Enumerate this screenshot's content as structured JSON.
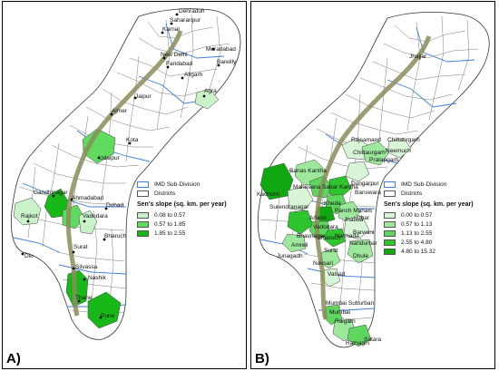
{
  "panels": {
    "a": {
      "label": "A)",
      "legend": {
        "sub_division": "IMD Sub-Division",
        "districts": "Districts",
        "title": "Sen's slope (sq. km. per year)",
        "classes": [
          {
            "label": "0.08 to 0.57",
            "color": "#c9f2c9"
          },
          {
            "label": "0.57 to 1.85",
            "color": "#5fdc5f"
          },
          {
            "label": "1.85 to 2.55",
            "color": "#18b818"
          }
        ]
      },
      "cities": [
        "Dehradun",
        "Saharanpur",
        "Karnal",
        "Muradabad",
        "New Delhi",
        "Faridabad",
        "Bareilly",
        "Aligarh",
        "Agra",
        "Jaipur",
        "Ajmer",
        "Kota",
        "Udaipur",
        "Gandhinagar",
        "Ahmadabad",
        "Dohad",
        "Rajkot",
        "Vadodara",
        "Bharuch",
        "Surat",
        "Diu",
        "Silvassa",
        "Nashik",
        "Thane",
        "Pune"
      ]
    },
    "b": {
      "label": "B)",
      "legend": {
        "sub_division": "IMD Sub-Division",
        "districts": "Districts",
        "title": "Sen's slope (sq. km. per year)",
        "classes": [
          {
            "label": "0.00 to 0.57",
            "color": "#d8f5d8"
          },
          {
            "label": "0.57 to 1.13",
            "color": "#9ee89e"
          },
          {
            "label": "1.13 to 2.55",
            "color": "#5fd65f"
          },
          {
            "label": "2.55 to 4.80",
            "color": "#2ec42e"
          },
          {
            "label": "4.80 to 15.32",
            "color": "#10a810"
          }
        ]
      },
      "districts": [
        "Jhajjar",
        "Rajsamand",
        "Chittaurgarh",
        "Pratapgarh",
        "Chittaurgarh",
        "Neemuch",
        "Banas Kantha",
        "Mahesana",
        "Sabar Kantha",
        "Dungarpur",
        "Banswara",
        "Kachchh",
        "Surendranagar",
        "Kheda",
        "Panch Mahals",
        "Anand",
        "Vadodara",
        "Jhabua",
        "Dhar",
        "Amreli",
        "Bhavnagar",
        "Bharuch",
        "Narmada",
        "Barwani",
        "Nandurbar",
        "Junagadh",
        "Surat",
        "Navsari",
        "Dhule",
        "Valsad",
        "Mumbai Suburban",
        "Mumbai",
        "Raigarh",
        "Satara",
        "Ratnagiri"
      ]
    }
  }
}
